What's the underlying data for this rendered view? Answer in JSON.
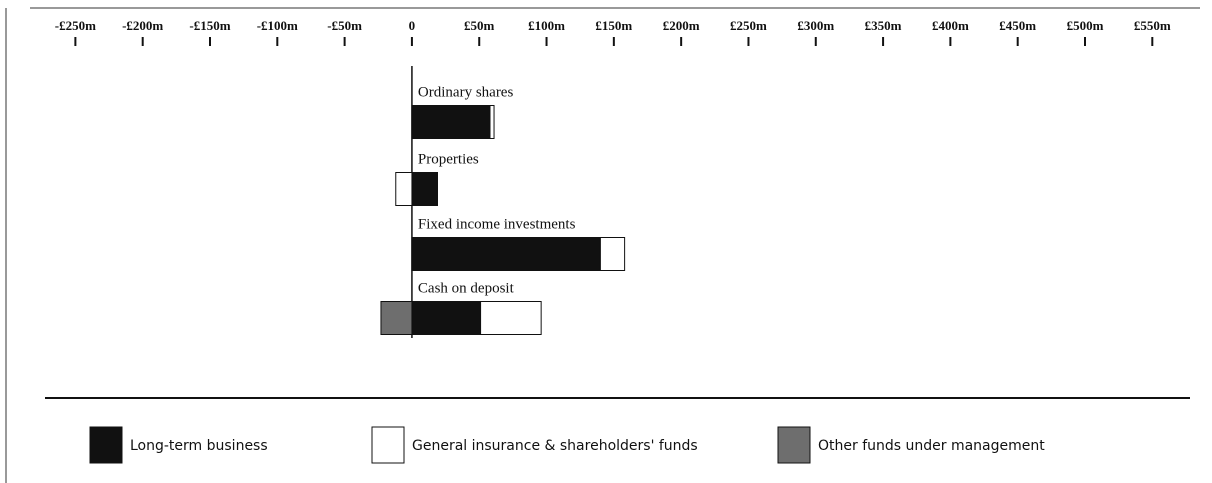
{
  "chart_data": {
    "type": "bar",
    "orientation": "horizontal",
    "categories": [
      "Ordinary shares",
      "Properties",
      "Fixed income investments",
      "Cash on deposit"
    ],
    "series": [
      {
        "name": "Long-term business",
        "color": "#111111",
        "values": [
          58,
          19,
          140,
          51
        ]
      },
      {
        "name": "General insurance & shareholders' funds",
        "color": "#ffffff",
        "values": [
          3,
          -12,
          18,
          45
        ]
      },
      {
        "name": "Other funds under management",
        "color": "#6e6e6e",
        "values": [
          null,
          null,
          null,
          -23
        ]
      }
    ],
    "xlim": [
      -280,
      578
    ],
    "xticks": [
      {
        "value": -250,
        "label": "-£250m"
      },
      {
        "value": -200,
        "label": "-£200m"
      },
      {
        "value": -150,
        "label": "-£150m"
      },
      {
        "value": -100,
        "label": "-£100m"
      },
      {
        "value": -50,
        "label": "-£50m"
      },
      0,
      {
        "value": 50,
        "label": "£50m"
      },
      {
        "value": 100,
        "label": "£100m"
      },
      {
        "value": 150,
        "label": "£150m"
      },
      {
        "value": 200,
        "label": "£200m"
      },
      {
        "value": 250,
        "label": "£250m"
      },
      {
        "value": 300,
        "label": "£300m"
      },
      {
        "value": 350,
        "label": "£350m"
      },
      {
        "value": 400,
        "label": "£400m"
      },
      {
        "value": 450,
        "label": "£450m"
      },
      {
        "value": 500,
        "label": "£500m"
      },
      {
        "value": 550,
        "label": "£550m"
      }
    ],
    "legend": "bottom"
  }
}
